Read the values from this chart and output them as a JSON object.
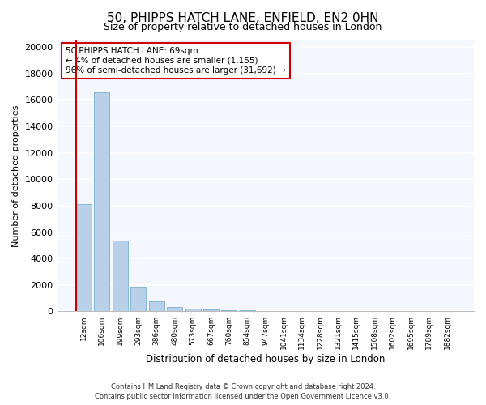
{
  "title_line1": "50, PHIPPS HATCH LANE, ENFIELD, EN2 0HN",
  "title_line2": "Size of property relative to detached houses in London",
  "xlabel": "Distribution of detached houses by size in London",
  "ylabel": "Number of detached properties",
  "categories": [
    "12sqm",
    "106sqm",
    "199sqm",
    "293sqm",
    "386sqm",
    "480sqm",
    "573sqm",
    "667sqm",
    "760sqm",
    "854sqm",
    "947sqm",
    "1041sqm",
    "1134sqm",
    "1228sqm",
    "1321sqm",
    "1415sqm",
    "1508sqm",
    "1602sqm",
    "1695sqm",
    "1789sqm",
    "1882sqm"
  ],
  "values": [
    8100,
    16550,
    5350,
    1850,
    750,
    350,
    230,
    150,
    120,
    80,
    40,
    20,
    10,
    5,
    3,
    2,
    1,
    1,
    0,
    0,
    0
  ],
  "bar_color": "#b8d0e8",
  "bar_edge_color": "#7aafd4",
  "vline_color": "#cc0000",
  "annotation_title": "50 PHIPPS HATCH LANE: 69sqm",
  "annotation_line2": "← 4% of detached houses are smaller (1,155)",
  "annotation_line3": "96% of semi-detached houses are larger (31,692) →",
  "annotation_box_color": "#cc0000",
  "ylim": [
    0,
    20500
  ],
  "yticks": [
    0,
    2000,
    4000,
    6000,
    8000,
    10000,
    12000,
    14000,
    16000,
    18000,
    20000
  ],
  "footer_line1": "Contains HM Land Registry data © Crown copyright and database right 2024.",
  "footer_line2": "Contains public sector information licensed under the Open Government Licence v3.0.",
  "bg_color": "#ffffff",
  "plot_bg_color": "#f5f7ff",
  "grid_color": "#ffffff",
  "title1_fontsize": 11,
  "title2_fontsize": 9
}
